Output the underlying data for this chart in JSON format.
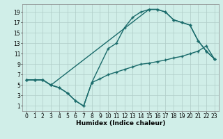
{
  "bg_color": "#d0eee8",
  "grid_color": "#b0ccc8",
  "line_color": "#1a6b6b",
  "marker_style": "+",
  "marker_size": 3,
  "linewidth": 1.0,
  "xlabel": "Humidex (Indice chaleur)",
  "xlabel_fontsize": 6.5,
  "tick_fontsize": 5.5,
  "xlim": [
    -0.5,
    23.5
  ],
  "ylim": [
    0,
    20.5
  ],
  "xticks": [
    0,
    1,
    2,
    3,
    4,
    5,
    6,
    7,
    8,
    9,
    10,
    11,
    12,
    13,
    14,
    15,
    16,
    17,
    18,
    19,
    20,
    21,
    22,
    23
  ],
  "yticks": [
    1,
    3,
    5,
    7,
    9,
    11,
    13,
    15,
    17,
    19
  ],
  "series1_x": [
    0,
    1,
    2,
    3,
    4,
    5,
    6,
    7,
    8,
    10,
    11,
    12,
    13,
    14,
    15,
    16,
    17,
    18,
    19,
    20,
    21,
    22,
    23
  ],
  "series1_y": [
    6,
    6,
    6,
    5,
    4.5,
    3.5,
    2,
    1,
    5.5,
    12,
    13,
    16,
    18,
    19,
    19.5,
    19.5,
    19,
    17.5,
    17,
    16.5,
    13.5,
    11.5,
    10
  ],
  "series2_x": [
    0,
    1,
    2,
    3,
    4,
    5,
    6,
    7,
    8,
    9,
    10,
    11,
    12,
    13,
    14,
    15,
    16,
    17,
    18,
    19,
    20,
    21,
    22,
    23
  ],
  "series2_y": [
    6,
    6,
    6,
    5,
    4.5,
    3.5,
    2,
    1,
    5.5,
    6.2,
    7,
    7.5,
    8,
    8.5,
    9,
    9.2,
    9.5,
    9.8,
    10.2,
    10.5,
    11,
    11.5,
    12.5,
    10
  ],
  "series3_x": [
    0,
    1,
    2,
    3,
    15,
    16,
    17,
    18,
    19,
    20,
    21,
    22,
    23
  ],
  "series3_y": [
    6,
    6,
    6,
    5,
    19.5,
    19.5,
    19,
    17.5,
    17,
    16.5,
    13.5,
    11.5,
    10
  ]
}
